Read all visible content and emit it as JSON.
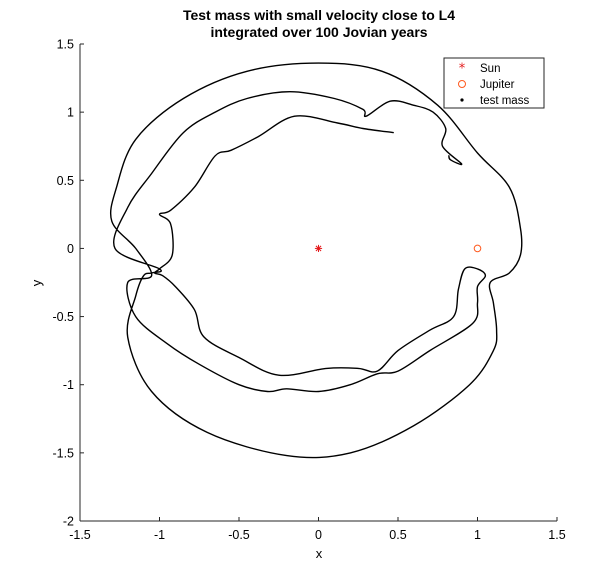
{
  "chart_data": {
    "type": "line",
    "title": [
      "Test mass with small velocity close to L4",
      "integrated over 100 Jovian years"
    ],
    "xlabel": "x",
    "ylabel": "y",
    "xlim": [
      -1.5,
      1.5
    ],
    "ylim": [
      -2,
      1.5
    ],
    "xticks": [
      -1.5,
      -1,
      -0.5,
      0,
      0.5,
      1,
      1.5
    ],
    "xtick_labels": [
      "-1.5",
      "-1",
      "-0.5",
      "0",
      "0.5",
      "1",
      "1.5"
    ],
    "yticks": [
      -2,
      -1.5,
      -1,
      -0.5,
      0,
      0.5,
      1,
      1.5
    ],
    "ytick_labels": [
      "-2",
      "-1.5",
      "-1",
      "-0.5",
      "0",
      "0.5",
      "1",
      "1.5"
    ],
    "grid": false,
    "legend_position": "top-right",
    "series": [
      {
        "name": "Sun",
        "marker": "asterisk",
        "color": "#e41a1c",
        "points": [
          [
            0,
            0
          ]
        ]
      },
      {
        "name": "Jupiter",
        "marker": "circle",
        "color": "#ff5a1f",
        "points": [
          [
            1,
            0
          ]
        ]
      },
      {
        "name": "test mass",
        "marker": "dot-line",
        "color": "#000000",
        "points": [
          [
            0.47,
            0.85
          ],
          [
            0.28,
            0.88
          ],
          [
            0.12,
            0.92
          ],
          [
            -0.15,
            0.97
          ],
          [
            -0.38,
            0.82
          ],
          [
            -0.55,
            0.72
          ],
          [
            -0.65,
            0.68
          ],
          [
            -0.78,
            0.45
          ],
          [
            -0.93,
            0.28
          ],
          [
            -1.0,
            0.25
          ],
          [
            -0.93,
            0.18
          ],
          [
            -0.92,
            -0.05
          ],
          [
            -1.0,
            -0.15
          ],
          [
            -1.03,
            -0.18
          ],
          [
            -0.98,
            -0.2
          ],
          [
            -0.9,
            -0.28
          ],
          [
            -0.78,
            -0.45
          ],
          [
            -0.72,
            -0.65
          ],
          [
            -0.5,
            -0.8
          ],
          [
            -0.25,
            -0.93
          ],
          [
            0.05,
            -0.88
          ],
          [
            0.25,
            -0.88
          ],
          [
            0.37,
            -0.9
          ],
          [
            0.5,
            -0.75
          ],
          [
            0.7,
            -0.6
          ],
          [
            0.85,
            -0.5
          ],
          [
            0.88,
            -0.3
          ],
          [
            0.92,
            -0.15
          ],
          [
            1.0,
            -0.15
          ],
          [
            1.05,
            -0.2
          ],
          [
            1.0,
            -0.28
          ],
          [
            1.0,
            -0.4
          ],
          [
            0.97,
            -0.55
          ],
          [
            0.7,
            -0.75
          ],
          [
            0.5,
            -0.9
          ],
          [
            0.37,
            -0.92
          ],
          [
            0.2,
            -1.0
          ],
          [
            0.0,
            -1.05
          ],
          [
            -0.2,
            -1.03
          ],
          [
            -0.32,
            -1.05
          ],
          [
            -0.5,
            -1.0
          ],
          [
            -0.75,
            -0.85
          ],
          [
            -0.95,
            -0.7
          ],
          [
            -1.15,
            -0.5
          ],
          [
            -1.2,
            -0.25
          ],
          [
            -1.05,
            -0.2
          ],
          [
            -1.15,
            0.0
          ],
          [
            -1.3,
            0.2
          ],
          [
            -1.27,
            0.45
          ],
          [
            -1.15,
            0.8
          ],
          [
            -0.85,
            1.1
          ],
          [
            -0.45,
            1.3
          ],
          [
            0.0,
            1.36
          ],
          [
            0.4,
            1.3
          ],
          [
            0.75,
            1.05
          ],
          [
            1.0,
            0.7
          ],
          [
            1.2,
            0.45
          ],
          [
            1.27,
            0.15
          ],
          [
            1.27,
            -0.05
          ],
          [
            1.2,
            -0.18
          ],
          [
            1.08,
            -0.25
          ],
          [
            1.1,
            -0.4
          ],
          [
            1.12,
            -0.6
          ],
          [
            1.1,
            -0.75
          ],
          [
            0.95,
            -1.0
          ],
          [
            0.6,
            -1.3
          ],
          [
            0.2,
            -1.5
          ],
          [
            -0.2,
            -1.52
          ],
          [
            -0.7,
            -1.35
          ],
          [
            -1.05,
            -1.05
          ],
          [
            -1.2,
            -0.65
          ],
          [
            -1.15,
            -0.35
          ],
          [
            -1.1,
            -0.2
          ],
          [
            -1.05,
            -0.18
          ],
          [
            -1.0,
            -0.15
          ],
          [
            -1.28,
            0.0
          ],
          [
            -1.2,
            0.3
          ],
          [
            -1.05,
            0.55
          ],
          [
            -0.85,
            0.85
          ],
          [
            -0.65,
            1.0
          ],
          [
            -0.45,
            1.1
          ],
          [
            -0.18,
            1.15
          ],
          [
            0.1,
            1.1
          ],
          [
            0.28,
            1.02
          ],
          [
            0.3,
            0.97
          ],
          [
            0.45,
            1.08
          ],
          [
            0.6,
            1.05
          ],
          [
            0.72,
            1.0
          ],
          [
            0.8,
            0.88
          ],
          [
            0.78,
            0.75
          ],
          [
            0.9,
            0.62
          ],
          [
            0.83,
            0.65
          ],
          [
            0.82,
            0.68
          ]
        ]
      }
    ]
  }
}
